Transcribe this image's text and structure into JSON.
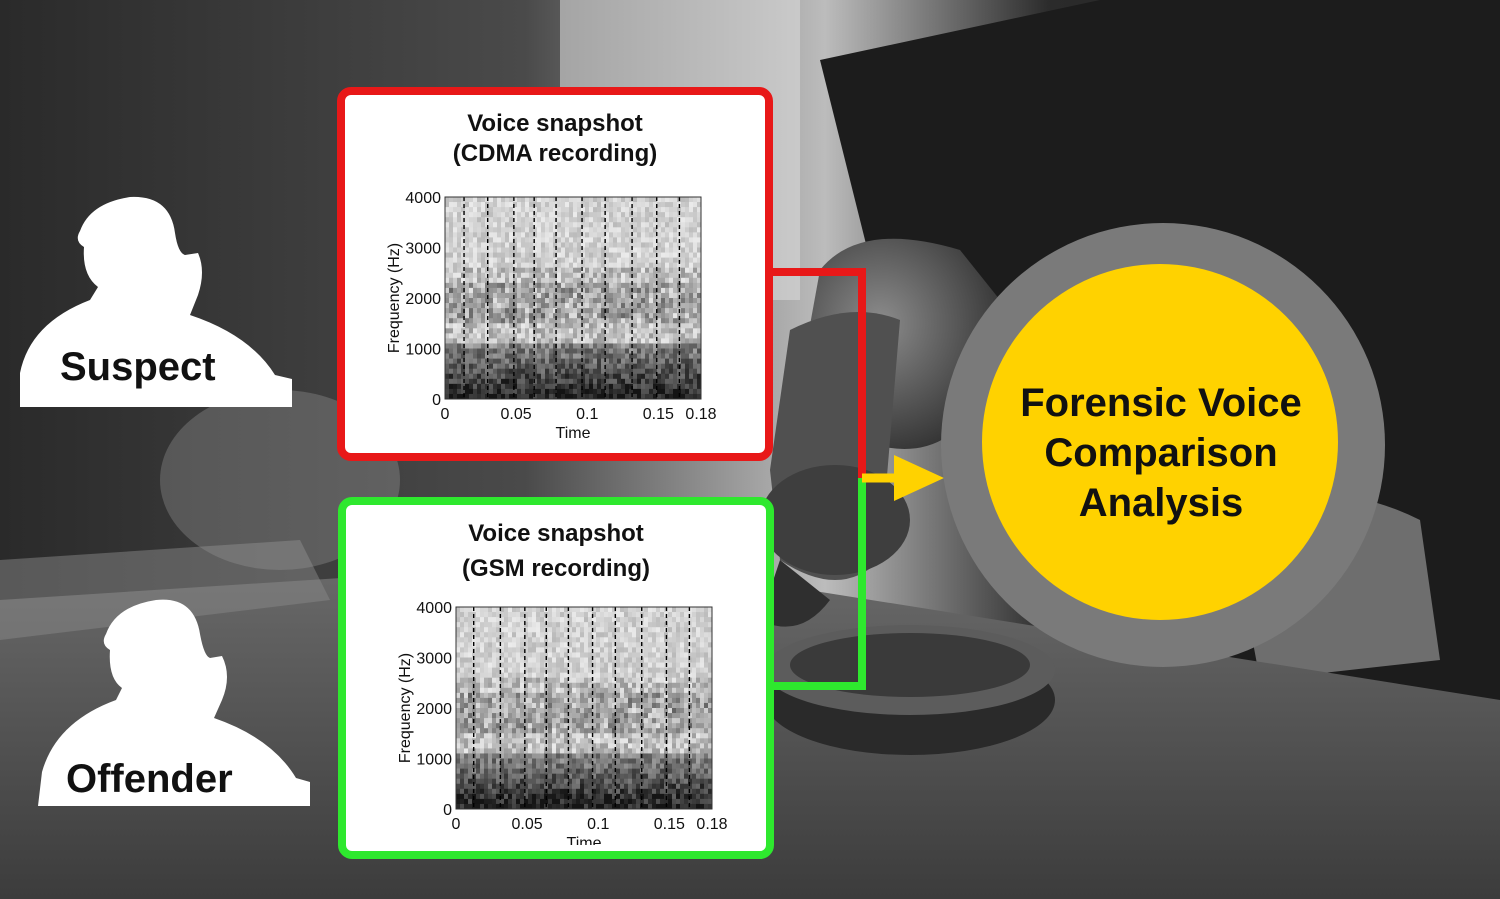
{
  "people": {
    "suspect": {
      "label": "Suspect"
    },
    "offender": {
      "label": "Offender"
    }
  },
  "panels": {
    "cdma": {
      "title_line1": "Voice snapshot",
      "title_line2": "(CDMA recording)",
      "border_color": "#e81818",
      "ylabel": "Frequency (Hz)",
      "xlabel": "Time",
      "yticks": [
        "4000",
        "3000",
        "2000",
        "1000",
        "0"
      ],
      "xticks": [
        "0",
        "0.05",
        "0.1",
        "0.15",
        "0.18"
      ]
    },
    "gsm": {
      "title_line1": "Voice snapshot",
      "title_line2": "(GSM recording)",
      "border_color": "#2ee82e",
      "ylabel": "Frequency (Hz)",
      "xlabel": "Time",
      "yticks": [
        "4000",
        "3000",
        "2000",
        "1000",
        "0"
      ],
      "xticks": [
        "0",
        "0.05",
        "0.1",
        "0.15",
        "0.18"
      ]
    }
  },
  "result": {
    "line1": "Forensic Voice",
    "line2": "Comparison",
    "line3": "Analysis",
    "fill_color": "#ffd200",
    "ring_color": "#7a7a7a"
  },
  "arrow_color": "#ffd200"
}
